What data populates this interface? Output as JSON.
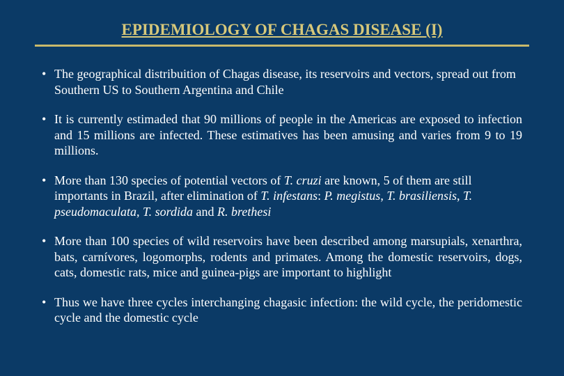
{
  "slide": {
    "background_color": "#0b3a66",
    "text_color": "#ffffff",
    "title_color": "#d7c87a",
    "rule_color": "#c9b96b",
    "title": "EPIDEMIOLOGY OF CHAGAS DISEASE (I)",
    "title_fontsize": 23,
    "body_fontsize": 18,
    "font_family": "Times New Roman",
    "bullets": {
      "b1": "The geographical distribuition of Chagas disease, its reservoirs and vectors, spread out from Southern US to Southern Argentina and Chile",
      "b2": "It is currently estimaded that 90 millions of people in the Americas are exposed to infection and 15 millions are infected. These estimatives has been amusing and varies from 9 to 19 millions.",
      "b3": {
        "pre": "More than 130 species of potential vectors of ",
        "sp1": "T. cruzi",
        "mid1": " are known, 5 of them are still importants in Brazil, after elimination of ",
        "sp2": "T. infestans",
        "mid2": ": ",
        "sp3": "P. megistus",
        "mid3": ", ",
        "sp4": "T. brasiliensis",
        "mid4": ", ",
        "sp5": "T. pseudomaculata",
        "mid5": ", ",
        "sp6": "T. sordida",
        "mid6": " and ",
        "sp7": "R. brethesi"
      },
      "b4": "More than 100 species of wild reservoirs have been described among marsupials, xenarthra, bats, carnívores, logomorphs, rodents and primates. Among the domestic reservoirs, dogs, cats, domestic rats, mice and guinea-pigs are important to highlight",
      "b5": "Thus we have three cycles interchanging chagasic infection: the wild cycle, the peridomestic cycle and the domestic cycle"
    }
  }
}
